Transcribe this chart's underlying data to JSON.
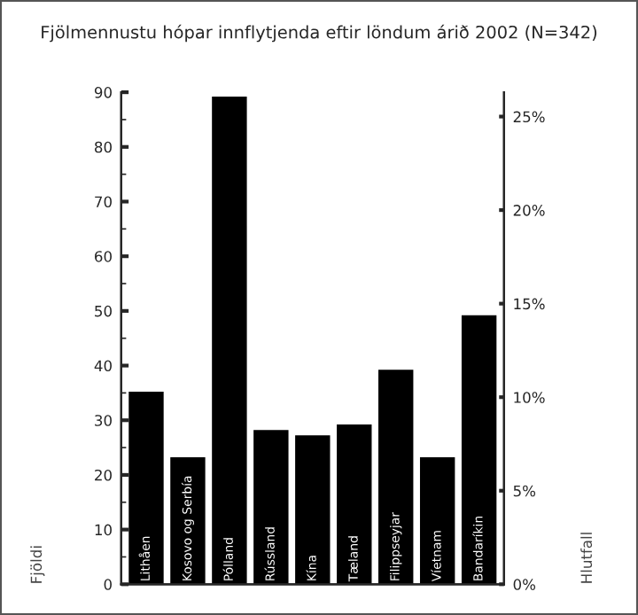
{
  "chart_data": {
    "type": "bar",
    "title": "Fjölmennustu hópar innflytjenda eftir löndum árið 2002 (N=342)",
    "categories": [
      "Lithåen",
      "Kosovo og Serbía",
      "Pólland",
      "Rússland",
      "Kína",
      "Tæland",
      "Filippseyjar",
      "Víetnam",
      "Bandaríkin"
    ],
    "values": [
      35,
      23,
      89,
      28,
      27,
      29,
      39,
      23,
      49
    ],
    "color": "#000000",
    "ylabel": "Fjöldi",
    "y2label": "Hlutfall",
    "ylim": [
      0,
      90
    ],
    "yticks": [
      0,
      10,
      20,
      30,
      40,
      50,
      60,
      70,
      80,
      90
    ],
    "y2lim": [
      0,
      26.3
    ],
    "y2ticks": [
      {
        "value": 0,
        "label": "0%"
      },
      {
        "value": 5,
        "label": "5%"
      },
      {
        "value": 10,
        "label": "10%"
      },
      {
        "value": 15,
        "label": "15%"
      },
      {
        "value": 20,
        "label": "20%"
      },
      {
        "value": 25,
        "label": "25%"
      }
    ],
    "grid": false,
    "legend": false
  }
}
